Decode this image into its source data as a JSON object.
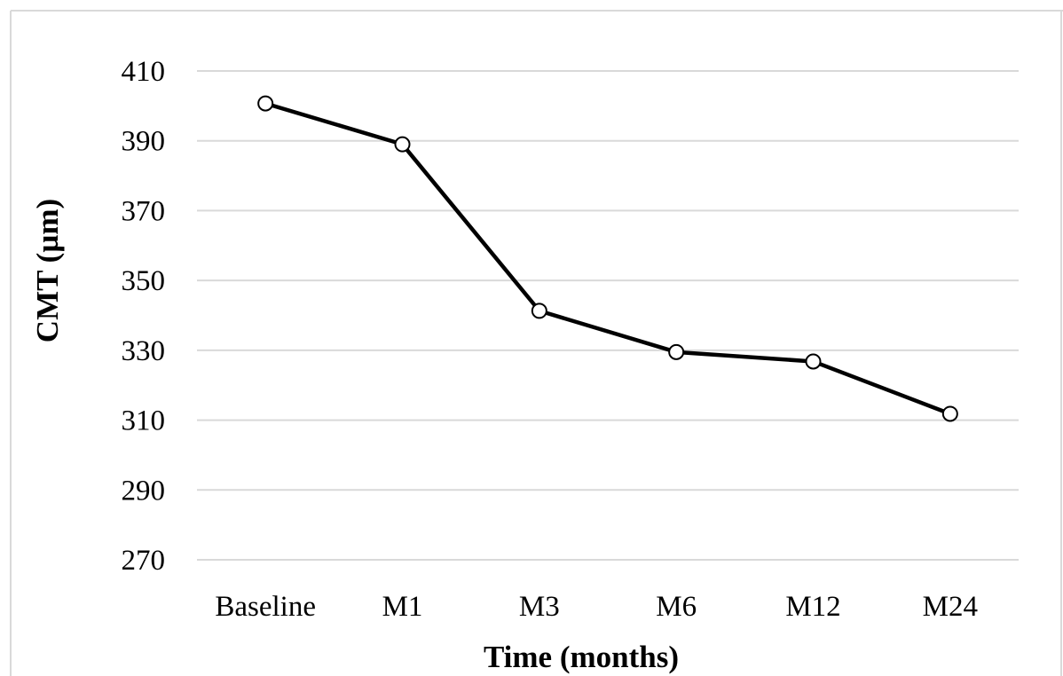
{
  "chart_data": {
    "type": "line",
    "title": "",
    "xlabel": "Time (months)",
    "ylabel": "CMT (µm)",
    "categories": [
      "Baseline",
      "M1",
      "M3",
      "M6",
      "M12",
      "M24"
    ],
    "series": [
      {
        "values": [
          400.7,
          389.0,
          341.3,
          329.5,
          326.8,
          311.8
        ]
      }
    ],
    "ylim": [
      270,
      410
    ],
    "yticks": [
      410,
      390,
      370,
      350,
      330,
      310,
      290,
      270
    ],
    "grid": true,
    "legend": "none",
    "colors": {
      "line": "#000000",
      "marker_fill": "#ffffff",
      "grid": "#d9d9d9",
      "frame": "#d9d9d9"
    }
  }
}
